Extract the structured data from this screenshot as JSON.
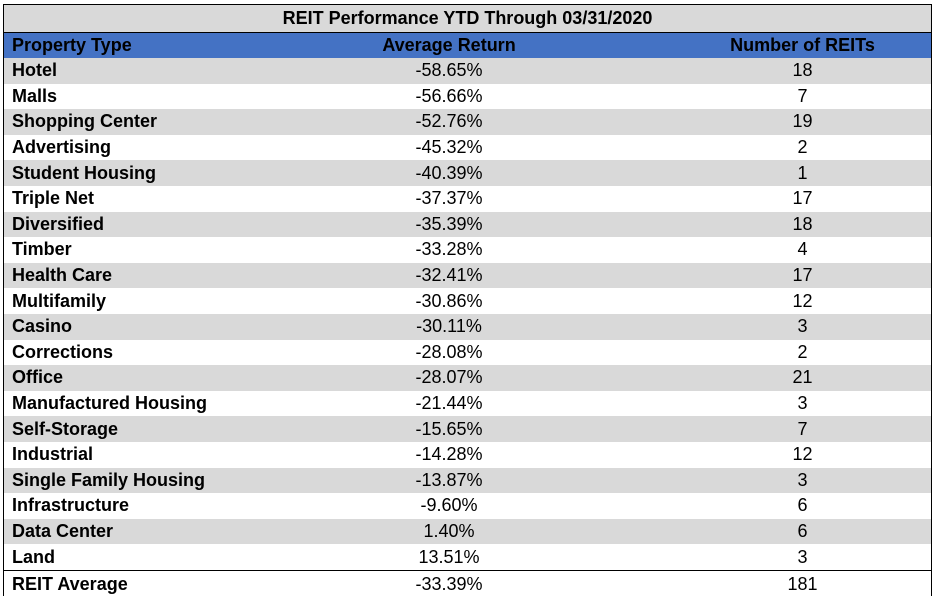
{
  "chart_data": {
    "type": "table",
    "title": "REIT Performance YTD Through 03/31/2020",
    "columns": [
      "Property Type",
      "Average Return",
      "Number of REITs"
    ],
    "rows": [
      [
        "Hotel",
        "-58.65%",
        "18"
      ],
      [
        "Malls",
        "-56.66%",
        "7"
      ],
      [
        "Shopping Center",
        "-52.76%",
        "19"
      ],
      [
        "Advertising",
        "-45.32%",
        "2"
      ],
      [
        "Student Housing",
        "-40.39%",
        "1"
      ],
      [
        "Triple Net",
        "-37.37%",
        "17"
      ],
      [
        "Diversified",
        "-35.39%",
        "18"
      ],
      [
        "Timber",
        "-33.28%",
        "4"
      ],
      [
        "Health Care",
        "-32.41%",
        "17"
      ],
      [
        "Multifamily",
        "-30.86%",
        "12"
      ],
      [
        "Casino",
        "-30.11%",
        "3"
      ],
      [
        "Corrections",
        "-28.08%",
        "2"
      ],
      [
        "Office",
        "-28.07%",
        "21"
      ],
      [
        "Manufactured Housing",
        "-21.44%",
        "3"
      ],
      [
        "Self-Storage",
        "-15.65%",
        "7"
      ],
      [
        "Industrial",
        "-14.28%",
        "12"
      ],
      [
        "Single Family Housing",
        "-13.87%",
        "3"
      ],
      [
        "Infrastructure",
        "-9.60%",
        "6"
      ],
      [
        "Data Center",
        "1.40%",
        "6"
      ],
      [
        "Land",
        "13.51%",
        "3"
      ]
    ],
    "summary": [
      "REIT Average",
      "-33.39%",
      "181"
    ]
  },
  "colors": {
    "header_bg": "#4472c4",
    "stripe_bg": "#d9d9d9",
    "title_bg": "#d9d9d9"
  }
}
